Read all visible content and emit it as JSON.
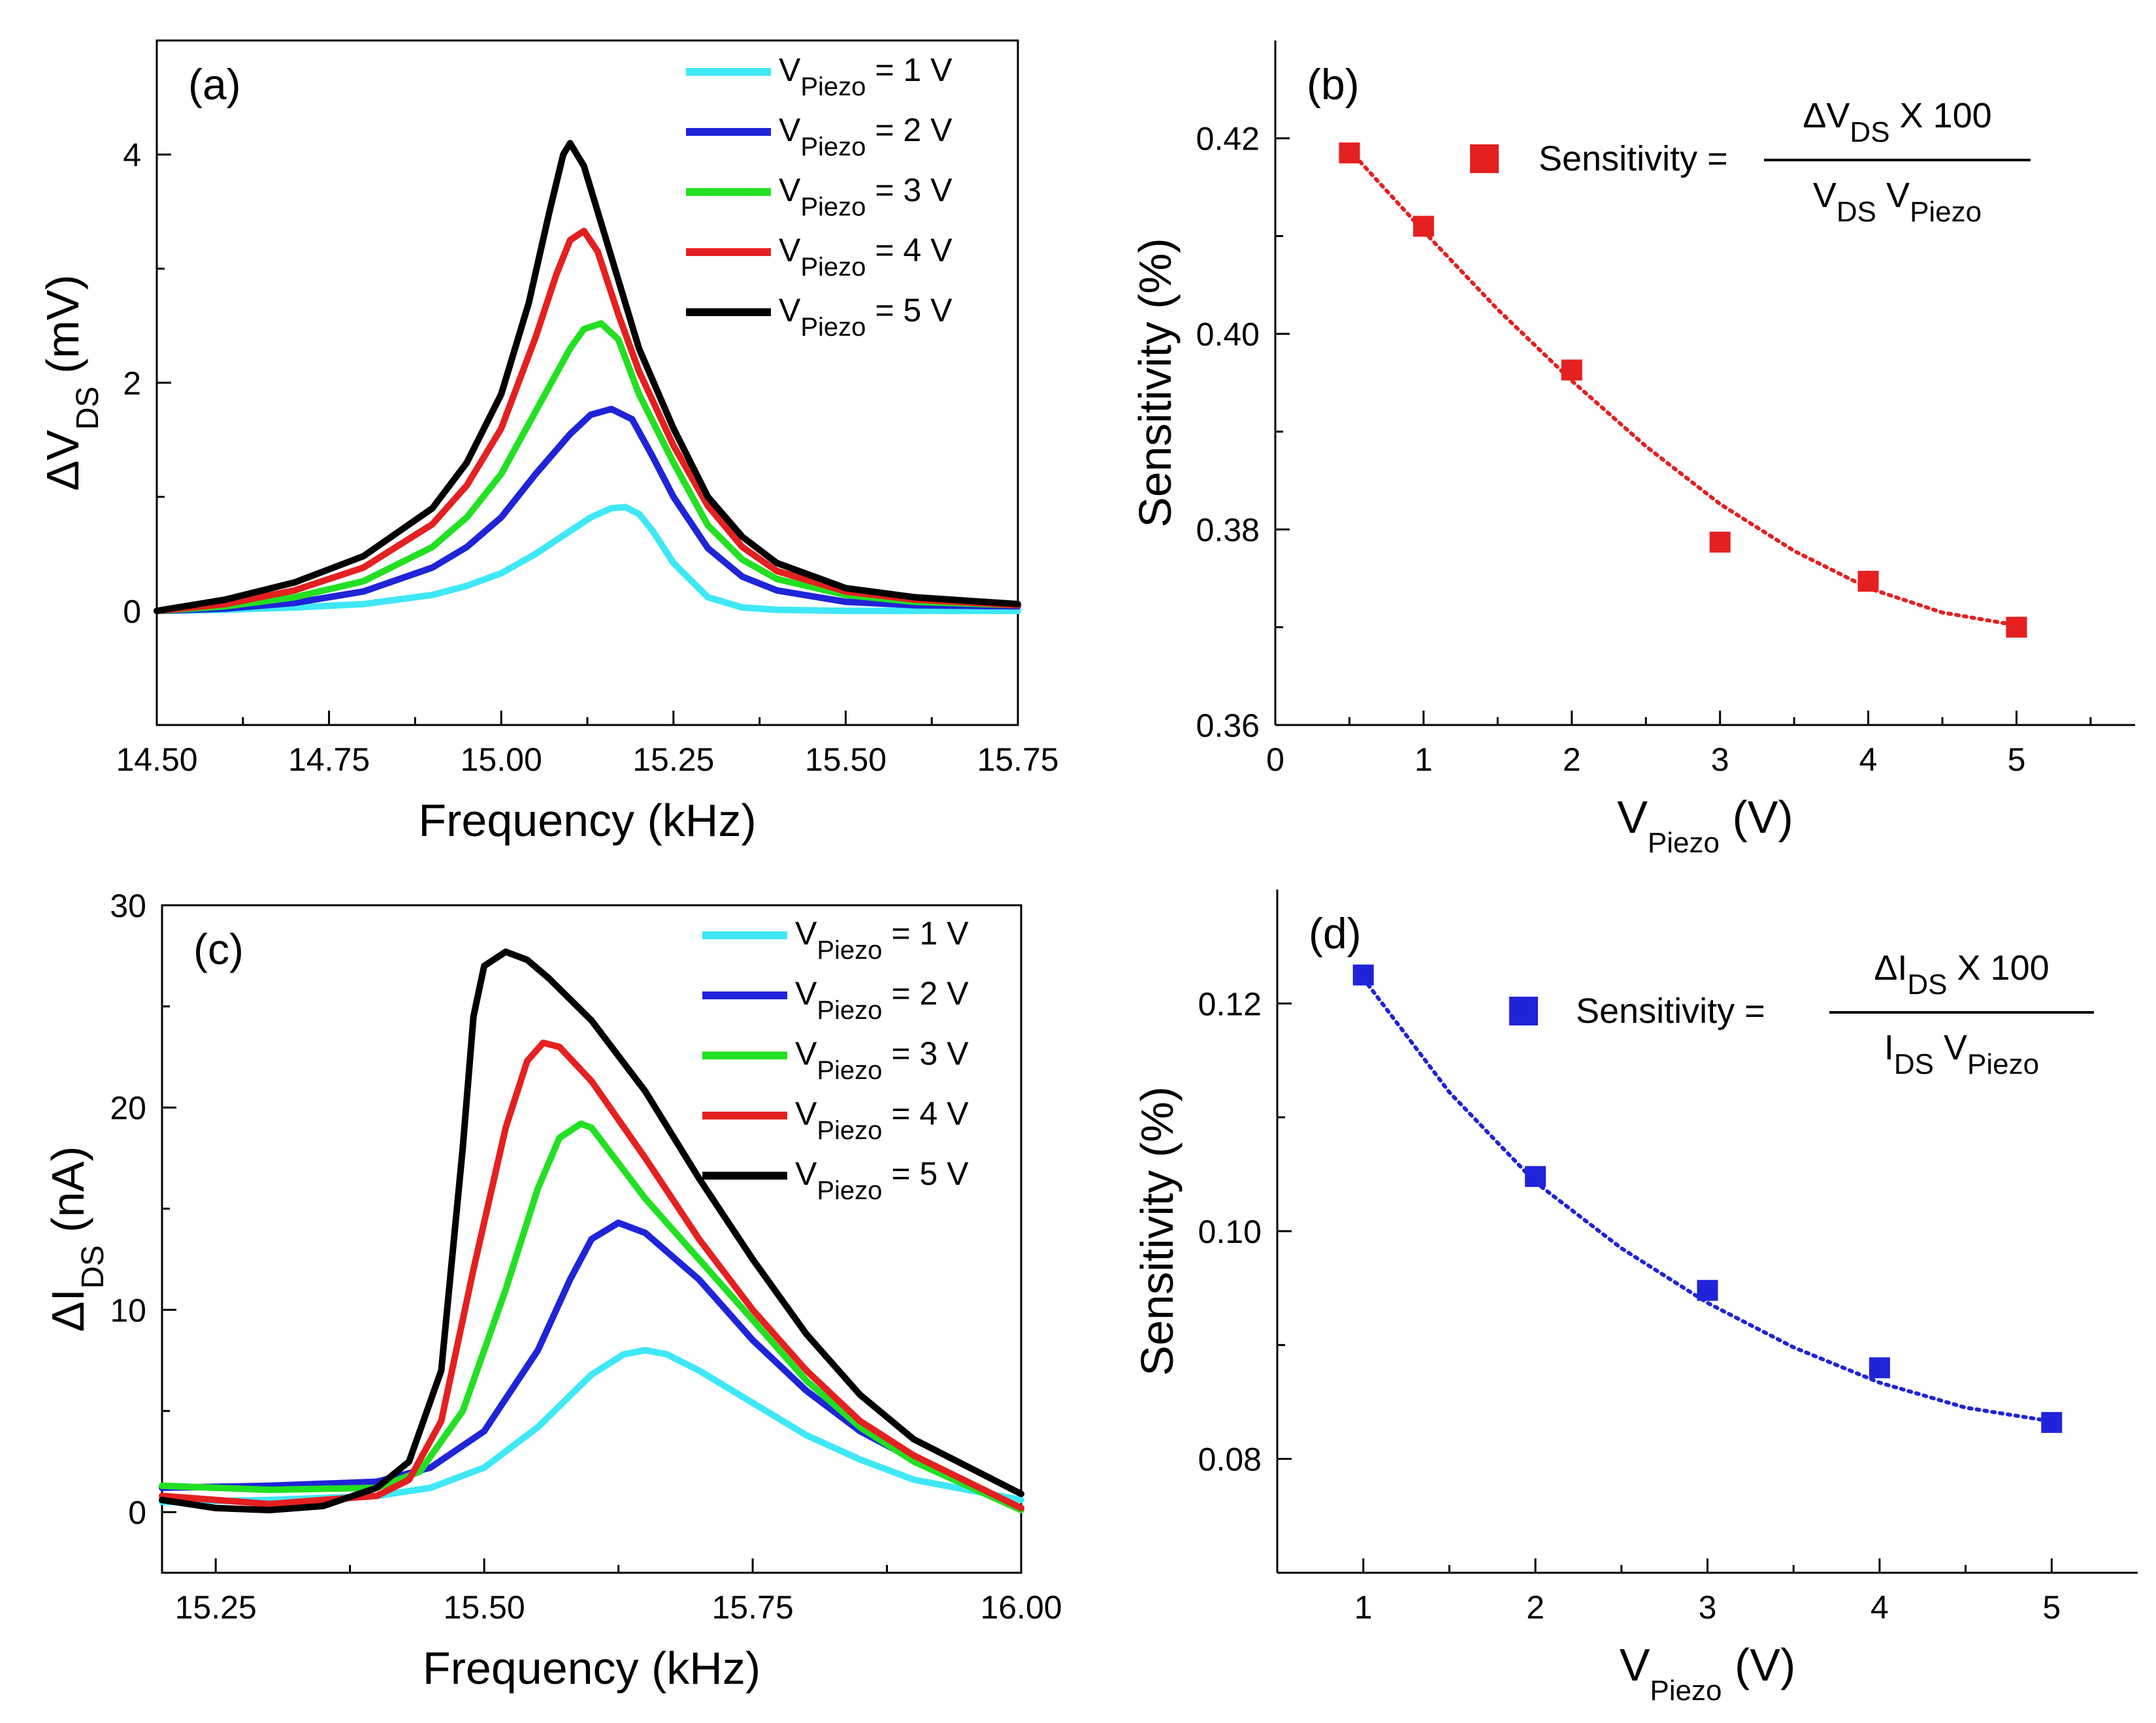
{
  "chart_data": [
    {
      "id": "a",
      "type": "line",
      "panel_label": "(a)",
      "xlabel": "Frequency (kHz)",
      "ylabel": {
        "prefix": "ΔV",
        "sub": "DS",
        "suffix": " (mV)"
      },
      "xlim": [
        14.5,
        15.75
      ],
      "ylim": [
        -1,
        5
      ],
      "xticks": [
        14.5,
        14.75,
        15.0,
        15.25,
        15.5,
        15.75
      ],
      "xtick_labels": [
        "14.50",
        "14.75",
        "15.00",
        "15.25",
        "15.50",
        "15.75"
      ],
      "yticks": [
        0,
        2,
        4
      ],
      "ytick_labels": [
        "0",
        "2",
        "4"
      ],
      "legend_position": "top-right",
      "series": [
        {
          "name": "1 V",
          "legend": {
            "pre": "V",
            "sub": "Piezo",
            "post": " = 1 V"
          },
          "color": "#3fe8f6",
          "x": [
            14.5,
            14.6,
            14.7,
            14.8,
            14.9,
            14.95,
            15.0,
            15.05,
            15.1,
            15.13,
            15.16,
            15.18,
            15.2,
            15.22,
            15.25,
            15.3,
            15.35,
            15.4,
            15.5,
            15.6,
            15.75
          ],
          "y": [
            0,
            0.01,
            0.03,
            0.06,
            0.14,
            0.22,
            0.33,
            0.5,
            0.7,
            0.82,
            0.9,
            0.91,
            0.85,
            0.7,
            0.42,
            0.12,
            0.03,
            0.01,
            0,
            0,
            0
          ]
        },
        {
          "name": "2 V",
          "legend": {
            "pre": "V",
            "sub": "Piezo",
            "post": " = 2 V"
          },
          "color": "#1f24d8",
          "x": [
            14.5,
            14.6,
            14.7,
            14.8,
            14.9,
            14.95,
            15.0,
            15.05,
            15.1,
            15.13,
            15.16,
            15.19,
            15.22,
            15.25,
            15.3,
            15.35,
            15.4,
            15.5,
            15.6,
            15.75
          ],
          "y": [
            0,
            0.02,
            0.07,
            0.17,
            0.38,
            0.56,
            0.82,
            1.2,
            1.55,
            1.72,
            1.77,
            1.68,
            1.35,
            1.0,
            0.55,
            0.3,
            0.18,
            0.08,
            0.05,
            0.04
          ]
        },
        {
          "name": "3 V",
          "legend": {
            "pre": "V",
            "sub": "Piezo",
            "post": " = 3 V"
          },
          "color": "#22e022",
          "x": [
            14.5,
            14.6,
            14.7,
            14.8,
            14.9,
            14.95,
            15.0,
            15.05,
            15.1,
            15.12,
            15.145,
            15.17,
            15.2,
            15.25,
            15.3,
            15.35,
            15.4,
            15.5,
            15.6,
            15.75
          ],
          "y": [
            0,
            0.04,
            0.12,
            0.26,
            0.56,
            0.82,
            1.2,
            1.75,
            2.3,
            2.47,
            2.52,
            2.38,
            1.9,
            1.3,
            0.75,
            0.45,
            0.28,
            0.14,
            0.08,
            0.05
          ]
        },
        {
          "name": "4 V",
          "legend": {
            "pre": "V",
            "sub": "Piezo",
            "post": " = 4 V"
          },
          "color": "#e42020",
          "x": [
            14.5,
            14.6,
            14.7,
            14.8,
            14.9,
            14.95,
            15.0,
            15.05,
            15.08,
            15.1,
            15.12,
            15.14,
            15.17,
            15.2,
            15.25,
            15.3,
            15.35,
            15.4,
            15.5,
            15.6,
            15.75
          ],
          "y": [
            0,
            0.06,
            0.18,
            0.38,
            0.76,
            1.1,
            1.6,
            2.4,
            2.95,
            3.25,
            3.33,
            3.15,
            2.6,
            2.1,
            1.45,
            0.92,
            0.56,
            0.35,
            0.17,
            0.1,
            0.05
          ]
        },
        {
          "name": "5 V",
          "legend": {
            "pre": "V",
            "sub": "Piezo",
            "post": " = 5 V"
          },
          "color": "#000000",
          "x": [
            14.5,
            14.6,
            14.7,
            14.8,
            14.9,
            14.95,
            15.0,
            15.04,
            15.07,
            15.09,
            15.1,
            15.12,
            15.15,
            15.18,
            15.2,
            15.25,
            15.3,
            15.35,
            15.4,
            15.5,
            15.6,
            15.65,
            15.75
          ],
          "y": [
            0,
            0.1,
            0.25,
            0.48,
            0.9,
            1.3,
            1.9,
            2.7,
            3.5,
            4.0,
            4.1,
            3.9,
            3.3,
            2.7,
            2.3,
            1.6,
            1.0,
            0.65,
            0.42,
            0.2,
            0.12,
            0.1,
            0.06
          ]
        }
      ]
    },
    {
      "id": "b",
      "type": "scatter",
      "panel_label": "(b)",
      "xlabel": {
        "pre": "V",
        "sub": "Piezo",
        "post": " (V)"
      },
      "ylabel": "Sensitivity (%)",
      "xlim": [
        0,
        5.8
      ],
      "ylim": [
        0.36,
        0.43
      ],
      "xticks": [
        0,
        1,
        2,
        3,
        4,
        5
      ],
      "xtick_labels": [
        "0",
        "1",
        "2",
        "3",
        "4",
        "5"
      ],
      "yticks": [
        0.36,
        0.38,
        0.4,
        0.42
      ],
      "ytick_labels": [
        "0.36",
        "0.38",
        "0.40",
        "0.42"
      ],
      "color": "#e42020",
      "points": {
        "x": [
          0.5,
          1,
          2,
          3,
          4,
          5
        ],
        "y": [
          0.4185,
          0.411,
          0.3963,
          0.3787,
          0.3747,
          0.37
        ]
      },
      "fit": {
        "style": "dotted",
        "x": [
          0.5,
          1,
          1.5,
          2,
          2.5,
          3,
          3.5,
          4,
          4.5,
          5
        ],
        "y": [
          0.4188,
          0.4105,
          0.4025,
          0.3952,
          0.3885,
          0.3826,
          0.3778,
          0.374,
          0.3715,
          0.3702
        ]
      },
      "equation": {
        "lhs": "Sensitivity =",
        "num_pre": "ΔV",
        "num_sub": "DS",
        "num_post": " X 100",
        "den_a_pre": "V",
        "den_a_sub": "DS",
        "den_b_pre": "V",
        "den_b_sub": "Piezo"
      }
    },
    {
      "id": "c",
      "type": "line",
      "panel_label": "(c)",
      "xlabel": "Frequency (kHz)",
      "ylabel": {
        "prefix": "ΔI",
        "sub": "DS",
        "suffix": " (nA)"
      },
      "xlim": [
        15.2,
        16.0
      ],
      "ylim": [
        -3,
        30
      ],
      "xticks": [
        15.25,
        15.5,
        15.75,
        16.0
      ],
      "xtick_labels": [
        "15.25",
        "15.50",
        "15.75",
        "16.00"
      ],
      "yticks": [
        0,
        10,
        20,
        30
      ],
      "ytick_labels": [
        "0",
        "10",
        "20",
        "30"
      ],
      "legend_position": "top-right",
      "series": [
        {
          "name": "1 V",
          "legend": {
            "pre": "V",
            "sub": "Piezo",
            "post": " = 1 V"
          },
          "color": "#3fe8f6",
          "x": [
            15.2,
            15.3,
            15.4,
            15.45,
            15.5,
            15.55,
            15.6,
            15.63,
            15.65,
            15.67,
            15.7,
            15.75,
            15.8,
            15.85,
            15.9,
            16.0
          ],
          "y": [
            0.5,
            0.6,
            0.8,
            1.2,
            2.2,
            4.2,
            6.8,
            7.8,
            8.0,
            7.8,
            7.0,
            5.4,
            3.8,
            2.6,
            1.6,
            0.6
          ]
        },
        {
          "name": "2 V",
          "legend": {
            "pre": "V",
            "sub": "Piezo",
            "post": " = 2 V"
          },
          "color": "#1f24d8",
          "x": [
            15.2,
            15.3,
            15.4,
            15.45,
            15.5,
            15.55,
            15.58,
            15.6,
            15.625,
            15.65,
            15.7,
            15.75,
            15.8,
            15.85,
            15.9,
            16.0
          ],
          "y": [
            1.2,
            1.3,
            1.5,
            2.2,
            4.0,
            8.0,
            11.5,
            13.5,
            14.3,
            13.8,
            11.5,
            8.5,
            6.0,
            4.0,
            2.6,
            0.2
          ]
        },
        {
          "name": "3 V",
          "legend": {
            "pre": "V",
            "sub": "Piezo",
            "post": " = 3 V"
          },
          "color": "#22e022",
          "x": [
            15.2,
            15.3,
            15.4,
            15.44,
            15.48,
            15.52,
            15.55,
            15.57,
            15.59,
            15.6,
            15.65,
            15.7,
            15.75,
            15.8,
            15.85,
            15.9,
            16.0
          ],
          "y": [
            1.3,
            1.1,
            1.2,
            2.0,
            5.0,
            11.0,
            16.0,
            18.5,
            19.2,
            19.0,
            15.5,
            12.5,
            9.5,
            6.5,
            4.2,
            2.5,
            0.1
          ]
        },
        {
          "name": "4 V",
          "legend": {
            "pre": "V",
            "sub": "Piezo",
            "post": " = 4 V"
          },
          "color": "#e42020",
          "x": [
            15.2,
            15.3,
            15.4,
            15.43,
            15.46,
            15.49,
            15.52,
            15.54,
            15.555,
            15.57,
            15.6,
            15.65,
            15.7,
            15.75,
            15.8,
            15.85,
            15.9,
            16.0
          ],
          "y": [
            0.8,
            0.4,
            0.8,
            1.6,
            4.5,
            12.0,
            19.0,
            22.3,
            23.2,
            23.0,
            21.3,
            17.5,
            13.5,
            10.0,
            7.0,
            4.5,
            2.8,
            0.2
          ]
        },
        {
          "name": "5 V",
          "legend": {
            "pre": "V",
            "sub": "Piezo",
            "post": " = 5 V"
          },
          "color": "#000000",
          "x": [
            15.2,
            15.25,
            15.3,
            15.35,
            15.4,
            15.43,
            15.46,
            15.48,
            15.49,
            15.5,
            15.52,
            15.54,
            15.56,
            15.6,
            15.65,
            15.7,
            15.75,
            15.8,
            15.85,
            15.9,
            16.0
          ],
          "y": [
            0.6,
            0.2,
            0.1,
            0.3,
            1.2,
            2.5,
            7.0,
            18.0,
            24.5,
            27.0,
            27.7,
            27.3,
            26.4,
            24.3,
            20.8,
            16.5,
            12.5,
            8.8,
            5.8,
            3.6,
            0.9
          ]
        }
      ]
    },
    {
      "id": "d",
      "type": "scatter",
      "panel_label": "(d)",
      "xlabel": {
        "pre": "V",
        "sub": "Piezo",
        "post": " (V)"
      },
      "ylabel": "Sensitivity (%)",
      "xlim": [
        0.5,
        5.5
      ],
      "ylim": [
        0.07,
        0.13
      ],
      "xticks": [
        1,
        2,
        3,
        4,
        5
      ],
      "xtick_labels": [
        "1",
        "2",
        "3",
        "4",
        "5"
      ],
      "yticks": [
        0.08,
        0.1,
        0.12
      ],
      "ytick_labels": [
        "0.08",
        "0.10",
        "0.12"
      ],
      "color": "#1f24d8",
      "points": {
        "x": [
          1,
          2,
          3,
          4,
          5
        ],
        "y": [
          0.1225,
          0.1048,
          0.0948,
          0.088,
          0.0832
        ]
      },
      "fit": {
        "style": "dotted",
        "x": [
          1,
          1.5,
          2,
          2.5,
          3,
          3.5,
          4,
          4.5,
          5
        ],
        "y": [
          0.1222,
          0.1122,
          0.1043,
          0.0985,
          0.0937,
          0.0898,
          0.0867,
          0.0845,
          0.0833
        ]
      },
      "equation": {
        "lhs": "Sensitivity =",
        "num_pre": "ΔI",
        "num_sub": "DS",
        "num_post": " X 100",
        "den_a_pre": "I",
        "den_a_sub": "DS",
        "den_b_pre": "V",
        "den_b_sub": "Piezo"
      }
    }
  ]
}
